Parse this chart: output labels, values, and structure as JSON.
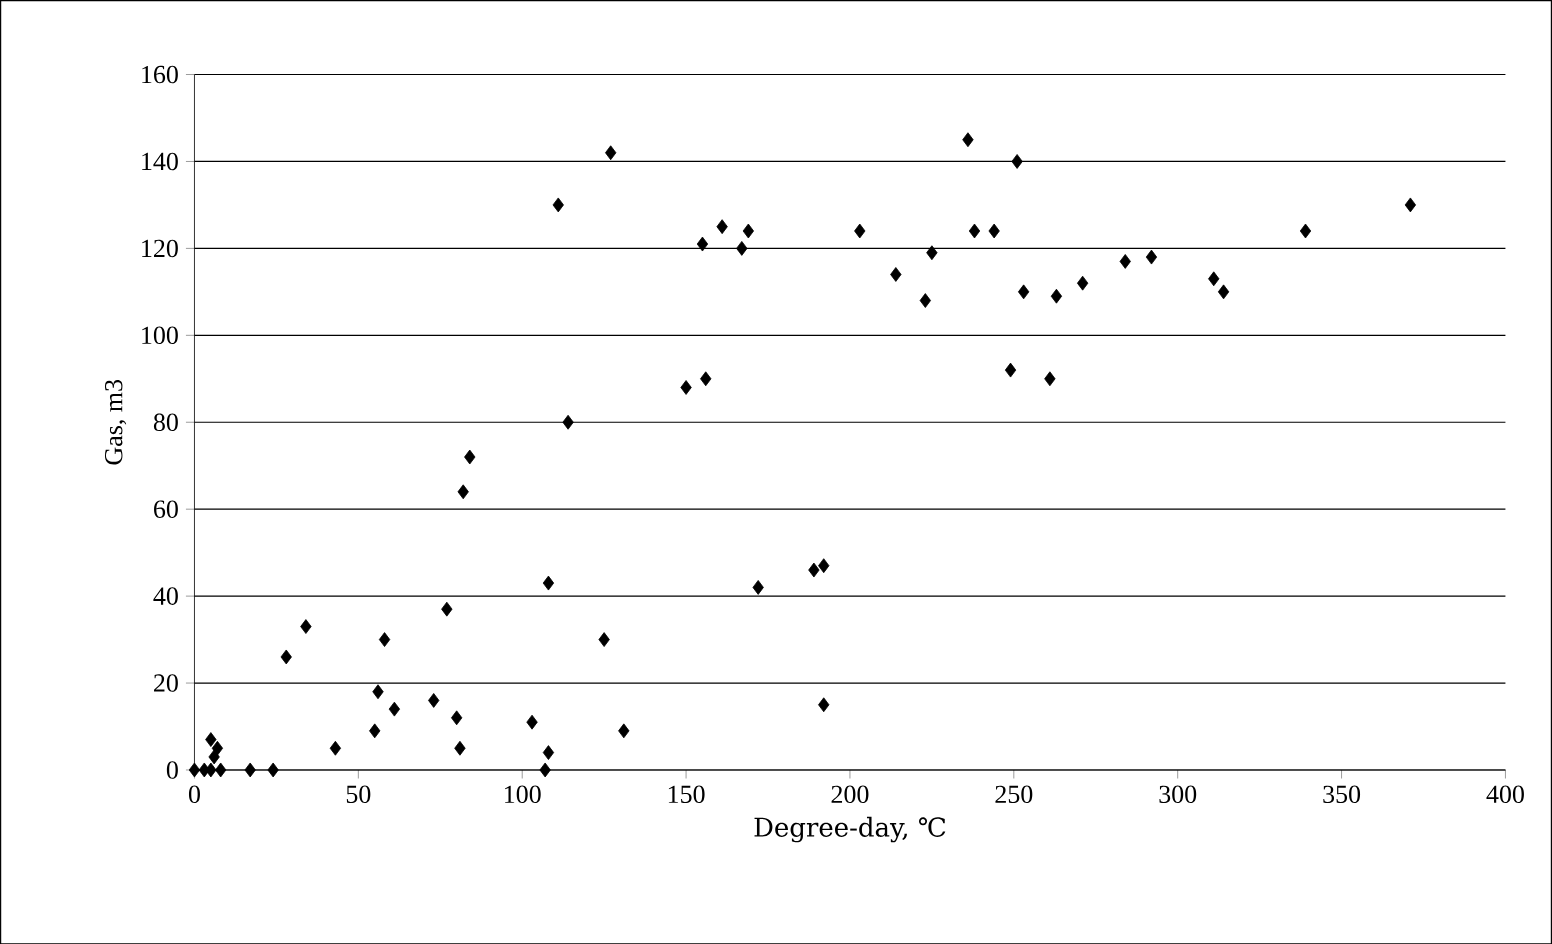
{
  "chart_data": {
    "type": "scatter",
    "xlabel": "Degree-day, ℃",
    "ylabel": "Gas, m3",
    "x": [
      0,
      3,
      5,
      6,
      7,
      5,
      8,
      17,
      24,
      28,
      34,
      43,
      55,
      56,
      58,
      61,
      73,
      77,
      80,
      81,
      82,
      84,
      103,
      107,
      108,
      108,
      111,
      114,
      125,
      127,
      131,
      150,
      155,
      156,
      161,
      167,
      169,
      172,
      189,
      192,
      192,
      203,
      214,
      223,
      225,
      236,
      238,
      244,
      249,
      251,
      253,
      261,
      263,
      271,
      284,
      292,
      311,
      314,
      339,
      371
    ],
    "values": [
      0,
      0,
      7,
      3,
      5,
      0,
      0,
      0,
      0,
      26,
      33,
      5,
      9,
      18,
      30,
      14,
      16,
      37,
      12,
      5,
      64,
      72,
      11,
      0,
      4,
      43,
      130,
      80,
      30,
      142,
      9,
      88,
      121,
      90,
      125,
      120,
      124,
      42,
      46,
      47,
      15,
      124,
      114,
      108,
      119,
      145,
      124,
      124,
      92,
      140,
      110,
      90,
      109,
      112,
      117,
      118,
      113,
      110,
      124,
      130
    ],
    "color": "#000000",
    "marker": "diamond",
    "grid": "y",
    "xlim": [
      0,
      400
    ],
    "ylim": [
      0,
      160
    ],
    "xticks": [
      0,
      50,
      100,
      150,
      200,
      250,
      300,
      350,
      400
    ],
    "yticks": [
      0,
      20,
      40,
      60,
      80,
      100,
      120,
      140,
      160
    ]
  }
}
